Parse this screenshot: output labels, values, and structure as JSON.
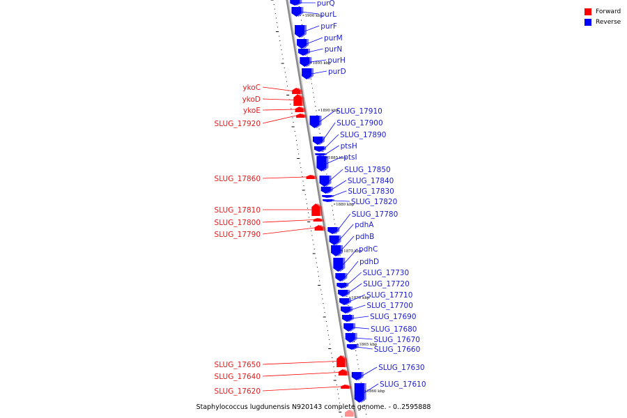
{
  "colors": {
    "forward": "#ff0000",
    "reverse": "#0000ff",
    "backbone": "#8a8a8a"
  },
  "legend": {
    "forward_label": "Forward",
    "reverse_label": "Reverse"
  },
  "caption": "Staphylococcus lugdunensis N920143 complete genome. - 0..2595888",
  "position_labels": [
    "1900 kbp",
    "1895 kbp",
    "1890 kbp",
    "1885 kbp",
    "1880 kbp",
    "1875 kbp",
    "1870 kbp",
    "1865 kbp",
    "1860 kbp"
  ],
  "forward_genes": [
    "ykoC",
    "ykoD",
    "ykoE",
    "SLUG_17920",
    "SLUG_17860",
    "SLUG_17810",
    "SLUG_17800",
    "SLUG_17790",
    "SLUG_17650",
    "SLUG_17640",
    "SLUG_17620"
  ],
  "reverse_genes": [
    "purQ",
    "purL",
    "purF",
    "purM",
    "purN",
    "purH",
    "purD",
    "SLUG_17910",
    "SLUG_17900",
    "SLUG_17890",
    "ptsH",
    "ptsI",
    "SLUG_17850",
    "SLUG_17840",
    "SLUG_17830",
    "SLUG_17820",
    "SLUG_17780",
    "pdhA",
    "pdhB",
    "pdhC",
    "pdhD",
    "SLUG_17730",
    "SLUG_17720",
    "SLUG_17710",
    "SLUG_17700",
    "SLUG_17690",
    "SLUG_17680",
    "SLUG_17670",
    "SLUG_17660",
    "SLUG_17630",
    "SLUG_17610"
  ]
}
